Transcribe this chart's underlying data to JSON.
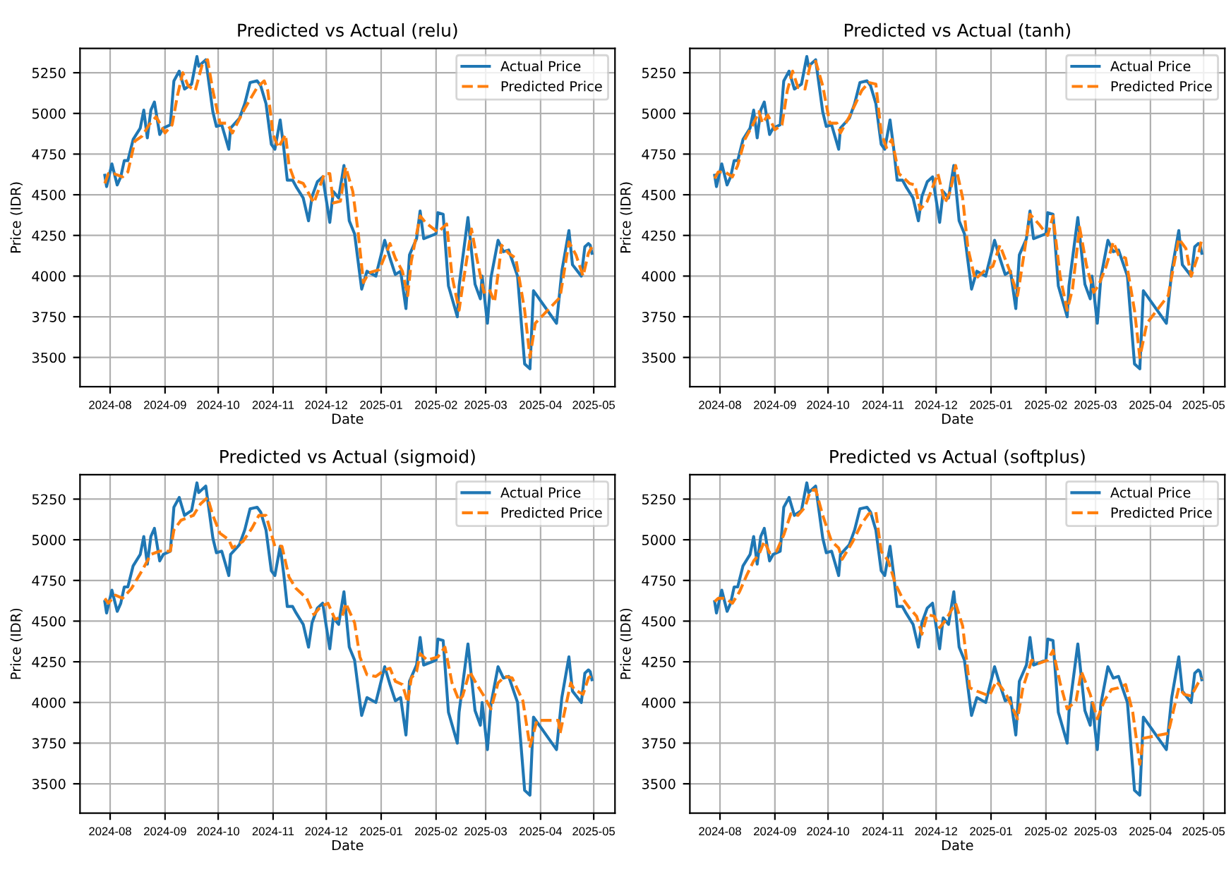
{
  "chart_data": [
    {
      "type": "line",
      "title": "Predicted vs Actual (relu)",
      "xlabel": "Date",
      "ylabel": "Price (IDR)",
      "xlim": [
        "2024-07-15",
        "2025-05-13"
      ],
      "ylim": [
        3320,
        5400
      ],
      "xticks": [
        "2024-08",
        "2024-09",
        "2024-10",
        "2024-11",
        "2024-12",
        "2025-01",
        "2025-02",
        "2025-03",
        "2025-04",
        "2025-05"
      ],
      "yticks": [
        3500,
        3750,
        4000,
        4250,
        4500,
        4750,
        5000,
        5250
      ],
      "grid": true,
      "legend": "top right",
      "series": [
        {
          "name": "Actual Price",
          "color": "#1f77b4",
          "line_style": "solid",
          "x": [
            "2024-07-29",
            "2024-07-30",
            "2024-08-02",
            "2024-08-05",
            "2024-08-07",
            "2024-08-09",
            "2024-08-11",
            "2024-08-14",
            "2024-08-18",
            "2024-08-20",
            "2024-08-22",
            "2024-08-24",
            "2024-08-26",
            "2024-08-29",
            "2024-08-31",
            "2024-09-04",
            "2024-09-06",
            "2024-09-09",
            "2024-09-12",
            "2024-09-16",
            "2024-09-19",
            "2024-09-20",
            "2024-09-24",
            "2024-09-28",
            "2024-09-30",
            "2024-10-03",
            "2024-10-07",
            "2024-10-08",
            "2024-10-13",
            "2024-10-16",
            "2024-10-19",
            "2024-10-23",
            "2024-10-25",
            "2024-10-28",
            "2024-10-31",
            "2024-11-02",
            "2024-11-05",
            "2024-11-07",
            "2024-11-09",
            "2024-11-12",
            "2024-11-14",
            "2024-11-18",
            "2024-11-21",
            "2024-11-23",
            "2024-11-26",
            "2024-11-29",
            "2024-12-03",
            "2024-12-05",
            "2024-12-08",
            "2024-12-11",
            "2024-12-14",
            "2024-12-17",
            "2024-12-19",
            "2024-12-21",
            "2024-12-24",
            "2024-12-29",
            "2025-01-03",
            "2025-01-06",
            "2025-01-09",
            "2025-01-12",
            "2025-01-15",
            "2025-01-17",
            "2025-01-21",
            "2025-01-23",
            "2025-01-25",
            "2025-02-01",
            "2025-02-02",
            "2025-02-05",
            "2025-02-08",
            "2025-02-13",
            "2025-02-14",
            "2025-02-19",
            "2025-02-23",
            "2025-02-26",
            "2025-02-27",
            "2025-03-02",
            "2025-03-04",
            "2025-03-08",
            "2025-03-11",
            "2025-03-14",
            "2025-03-19",
            "2025-03-23",
            "2025-03-26",
            "2025-03-28",
            "2025-04-10",
            "2025-04-13",
            "2025-04-17",
            "2025-04-19",
            "2025-04-24",
            "2025-04-26",
            "2025-04-28",
            "2025-04-29",
            "2025-04-30"
          ],
          "values": [
            4620,
            4550,
            4690,
            4560,
            4610,
            4710,
            4710,
            4840,
            4910,
            5020,
            4850,
            5020,
            5070,
            4870,
            4910,
            4930,
            5200,
            5260,
            5150,
            5180,
            5350,
            5290,
            5330,
            5010,
            4920,
            4930,
            4780,
            4910,
            4970,
            5060,
            5190,
            5200,
            5170,
            5060,
            4810,
            4780,
            4960,
            4790,
            4590,
            4590,
            4550,
            4480,
            4340,
            4490,
            4580,
            4610,
            4330,
            4520,
            4480,
            4680,
            4340,
            4260,
            4090,
            3920,
            4030,
            4000,
            4220,
            4110,
            4010,
            4030,
            3800,
            4130,
            4230,
            4400,
            4230,
            4260,
            4390,
            4380,
            3940,
            3750,
            3940,
            4360,
            3950,
            3860,
            4000,
            3710,
            3990,
            4220,
            4150,
            4160,
            4000,
            3460,
            3430,
            3910,
            3710,
            4030,
            4280,
            4070,
            4000,
            4180,
            4200,
            4190,
            4140
          ]
        },
        {
          "name": "Predicted Price",
          "color": "#ff7f0e",
          "line_style": "dashed",
          "x": [
            "2024-07-29",
            "2024-07-31",
            "2024-08-03",
            "2024-08-08",
            "2024-08-11",
            "2024-08-15",
            "2024-08-19",
            "2024-08-23",
            "2024-08-27",
            "2024-09-01",
            "2024-09-05",
            "2024-09-08",
            "2024-09-11",
            "2024-09-14",
            "2024-09-18",
            "2024-09-22",
            "2024-09-25",
            "2024-09-28",
            "2024-10-02",
            "2024-10-06",
            "2024-10-09",
            "2024-10-16",
            "2024-10-23",
            "2024-10-27",
            "2024-10-29",
            "2024-11-01",
            "2024-11-04",
            "2024-11-08",
            "2024-11-10",
            "2024-11-13",
            "2024-11-18",
            "2024-11-24",
            "2024-11-28",
            "2024-11-30",
            "2024-12-03",
            "2024-12-05",
            "2024-12-09",
            "2024-12-12",
            "2024-12-16",
            "2024-12-19",
            "2024-12-22",
            "2024-12-25",
            "2024-12-31",
            "2025-01-06",
            "2025-01-09",
            "2025-01-13",
            "2025-01-16",
            "2025-01-18",
            "2025-01-23",
            "2025-01-26",
            "2025-02-02",
            "2025-02-07",
            "2025-02-10",
            "2025-02-14",
            "2025-02-16",
            "2025-02-21",
            "2025-02-24",
            "2025-02-28",
            "2025-03-03",
            "2025-03-06",
            "2025-03-10",
            "2025-03-14",
            "2025-03-18",
            "2025-03-23",
            "2025-03-26",
            "2025-03-29",
            "2025-04-12",
            "2025-04-17",
            "2025-04-21",
            "2025-04-25",
            "2025-04-28",
            "2025-04-30"
          ],
          "values": [
            4570,
            4630,
            4630,
            4610,
            4640,
            4830,
            4860,
            4930,
            4980,
            4880,
            4930,
            5110,
            5250,
            5170,
            5140,
            5300,
            5330,
            5140,
            4940,
            4940,
            4880,
            5030,
            5160,
            5200,
            5140,
            4870,
            4790,
            4870,
            4680,
            4590,
            4570,
            4450,
            4570,
            4630,
            4630,
            4450,
            4460,
            4670,
            4520,
            4270,
            3960,
            4020,
            4040,
            4200,
            4110,
            4030,
            3880,
            4090,
            4370,
            4330,
            4270,
            4320,
            4000,
            3790,
            3940,
            4290,
            4110,
            3900,
            3920,
            3840,
            4190,
            4140,
            4110,
            3790,
            3500,
            3710,
            3870,
            4210,
            4130,
            4000,
            4140,
            4180
          ]
        }
      ]
    },
    {
      "type": "line",
      "title": "Predicted vs Actual (tanh)",
      "xlabel": "Date",
      "ylabel": "Price (IDR)",
      "xlim": [
        "2024-07-15",
        "2025-05-13"
      ],
      "ylim": [
        3320,
        5400
      ],
      "xticks": [
        "2024-08",
        "2024-09",
        "2024-10",
        "2024-11",
        "2024-12",
        "2025-01",
        "2025-02",
        "2025-03",
        "2025-04",
        "2025-05"
      ],
      "yticks": [
        3500,
        3750,
        4000,
        4250,
        4500,
        4750,
        5000,
        5250
      ],
      "grid": true,
      "legend": "top right",
      "series": [
        {
          "name": "Actual Price",
          "color": "#1f77b4",
          "line_style": "solid",
          "x": [
            "2024-07-29",
            "2024-07-30",
            "2024-08-02",
            "2024-08-05",
            "2024-08-07",
            "2024-08-09",
            "2024-08-11",
            "2024-08-14",
            "2024-08-18",
            "2024-08-20",
            "2024-08-22",
            "2024-08-24",
            "2024-08-26",
            "2024-08-29",
            "2024-08-31",
            "2024-09-04",
            "2024-09-06",
            "2024-09-09",
            "2024-09-12",
            "2024-09-16",
            "2024-09-19",
            "2024-09-20",
            "2024-09-24",
            "2024-09-28",
            "2024-09-30",
            "2024-10-03",
            "2024-10-07",
            "2024-10-08",
            "2024-10-13",
            "2024-10-16",
            "2024-10-19",
            "2024-10-23",
            "2024-10-25",
            "2024-10-28",
            "2024-10-31",
            "2024-11-02",
            "2024-11-05",
            "2024-11-07",
            "2024-11-09",
            "2024-11-12",
            "2024-11-14",
            "2024-11-18",
            "2024-11-21",
            "2024-11-23",
            "2024-11-26",
            "2024-11-29",
            "2024-12-03",
            "2024-12-05",
            "2024-12-08",
            "2024-12-11",
            "2024-12-14",
            "2024-12-17",
            "2024-12-19",
            "2024-12-21",
            "2024-12-24",
            "2024-12-29",
            "2025-01-03",
            "2025-01-06",
            "2025-01-09",
            "2025-01-12",
            "2025-01-15",
            "2025-01-17",
            "2025-01-21",
            "2025-01-23",
            "2025-01-25",
            "2025-02-01",
            "2025-02-02",
            "2025-02-05",
            "2025-02-08",
            "2025-02-13",
            "2025-02-14",
            "2025-02-19",
            "2025-02-23",
            "2025-02-26",
            "2025-02-27",
            "2025-03-02",
            "2025-03-04",
            "2025-03-08",
            "2025-03-11",
            "2025-03-14",
            "2025-03-19",
            "2025-03-23",
            "2025-03-26",
            "2025-03-28",
            "2025-04-10",
            "2025-04-13",
            "2025-04-17",
            "2025-04-19",
            "2025-04-24",
            "2025-04-26",
            "2025-04-28",
            "2025-04-29",
            "2025-04-30"
          ],
          "values": [
            4620,
            4550,
            4690,
            4560,
            4610,
            4710,
            4710,
            4840,
            4910,
            5020,
            4850,
            5020,
            5070,
            4870,
            4910,
            4930,
            5200,
            5260,
            5150,
            5180,
            5350,
            5290,
            5330,
            5010,
            4920,
            4930,
            4780,
            4910,
            4970,
            5060,
            5190,
            5200,
            5170,
            5060,
            4810,
            4780,
            4960,
            4790,
            4590,
            4590,
            4550,
            4480,
            4340,
            4490,
            4580,
            4610,
            4330,
            4520,
            4480,
            4680,
            4340,
            4260,
            4090,
            3920,
            4030,
            4000,
            4220,
            4110,
            4010,
            4030,
            3800,
            4130,
            4230,
            4400,
            4230,
            4260,
            4390,
            4380,
            3940,
            3750,
            3940,
            4360,
            3950,
            3860,
            4000,
            3710,
            3990,
            4220,
            4150,
            4160,
            4000,
            3460,
            3430,
            3910,
            3710,
            4030,
            4280,
            4070,
            4000,
            4180,
            4200,
            4190,
            4140
          ]
        },
        {
          "name": "Predicted Price",
          "color": "#ff7f0e",
          "line_style": "dashed",
          "x": [
            "2024-07-29",
            "2024-07-31",
            "2024-08-04",
            "2024-08-08",
            "2024-08-11",
            "2024-08-15",
            "2024-08-20",
            "2024-08-23",
            "2024-08-25",
            "2024-08-28",
            "2024-09-01",
            "2024-09-05",
            "2024-09-08",
            "2024-09-11",
            "2024-09-14",
            "2024-09-18",
            "2024-09-21",
            "2024-09-24",
            "2024-09-28",
            "2024-10-02",
            "2024-10-06",
            "2024-10-08",
            "2024-10-13",
            "2024-10-20",
            "2024-10-24",
            "2024-10-28",
            "2024-10-31",
            "2024-11-03",
            "2024-11-06",
            "2024-11-10",
            "2024-11-16",
            "2024-11-19",
            "2024-11-22",
            "2024-11-26",
            "2024-12-02",
            "2024-12-06",
            "2024-12-09",
            "2024-12-12",
            "2024-12-16",
            "2024-12-19",
            "2024-12-23",
            "2024-12-28",
            "2025-01-02",
            "2025-01-06",
            "2025-01-12",
            "2025-01-16",
            "2025-01-19",
            "2025-01-23",
            "2025-01-28",
            "2025-02-02",
            "2025-02-05",
            "2025-02-09",
            "2025-02-13",
            "2025-02-16",
            "2025-02-20",
            "2025-02-24",
            "2025-02-28",
            "2025-03-03",
            "2025-03-07",
            "2025-03-11",
            "2025-03-14",
            "2025-03-18",
            "2025-03-23",
            "2025-03-26",
            "2025-03-30",
            "2025-04-11",
            "2025-04-17",
            "2025-04-21",
            "2025-04-24",
            "2025-04-28",
            "2025-04-30"
          ],
          "values": [
            4600,
            4640,
            4640,
            4610,
            4680,
            4840,
            4940,
            5010,
            4940,
            4990,
            4900,
            4930,
            5140,
            5260,
            5160,
            5150,
            5300,
            5320,
            5170,
            4940,
            4940,
            4880,
            4980,
            5140,
            5190,
            5180,
            4880,
            4790,
            4840,
            4630,
            4570,
            4560,
            4410,
            4460,
            4630,
            4450,
            4520,
            4680,
            4480,
            4170,
            3980,
            4030,
            4060,
            4190,
            4020,
            3880,
            4090,
            4380,
            4320,
            4250,
            4370,
            4000,
            3790,
            3920,
            4300,
            4060,
            3900,
            3950,
            4060,
            4210,
            4130,
            4110,
            3790,
            3500,
            3710,
            3880,
            4230,
            4170,
            4000,
            4130,
            4230
          ]
        }
      ]
    },
    {
      "type": "line",
      "title": "Predicted vs Actual (sigmoid)",
      "xlabel": "Date",
      "ylabel": "Price (IDR)",
      "xlim": [
        "2024-07-15",
        "2025-05-13"
      ],
      "ylim": [
        3320,
        5400
      ],
      "xticks": [
        "2024-08",
        "2024-09",
        "2024-10",
        "2024-11",
        "2024-12",
        "2025-01",
        "2025-02",
        "2025-03",
        "2025-04",
        "2025-05"
      ],
      "yticks": [
        3500,
        3750,
        4000,
        4250,
        4500,
        4750,
        5000,
        5250
      ],
      "grid": true,
      "legend": "top right",
      "series": [
        {
          "name": "Actual Price",
          "color": "#1f77b4",
          "line_style": "solid",
          "x": [
            "2024-07-29",
            "2024-07-30",
            "2024-08-02",
            "2024-08-05",
            "2024-08-07",
            "2024-08-09",
            "2024-08-11",
            "2024-08-14",
            "2024-08-18",
            "2024-08-20",
            "2024-08-22",
            "2024-08-24",
            "2024-08-26",
            "2024-08-29",
            "2024-08-31",
            "2024-09-04",
            "2024-09-06",
            "2024-09-09",
            "2024-09-12",
            "2024-09-16",
            "2024-09-19",
            "2024-09-20",
            "2024-09-24",
            "2024-09-28",
            "2024-09-30",
            "2024-10-03",
            "2024-10-07",
            "2024-10-08",
            "2024-10-13",
            "2024-10-16",
            "2024-10-19",
            "2024-10-23",
            "2024-10-25",
            "2024-10-28",
            "2024-10-31",
            "2024-11-02",
            "2024-11-05",
            "2024-11-07",
            "2024-11-09",
            "2024-11-12",
            "2024-11-14",
            "2024-11-18",
            "2024-11-21",
            "2024-11-23",
            "2024-11-26",
            "2024-11-29",
            "2024-12-03",
            "2024-12-05",
            "2024-12-08",
            "2024-12-11",
            "2024-12-14",
            "2024-12-17",
            "2024-12-19",
            "2024-12-21",
            "2024-12-24",
            "2024-12-29",
            "2025-01-03",
            "2025-01-06",
            "2025-01-09",
            "2025-01-12",
            "2025-01-15",
            "2025-01-17",
            "2025-01-21",
            "2025-01-23",
            "2025-01-25",
            "2025-02-01",
            "2025-02-02",
            "2025-02-05",
            "2025-02-08",
            "2025-02-13",
            "2025-02-14",
            "2025-02-19",
            "2025-02-23",
            "2025-02-26",
            "2025-02-27",
            "2025-03-02",
            "2025-03-04",
            "2025-03-08",
            "2025-03-11",
            "2025-03-14",
            "2025-03-19",
            "2025-03-23",
            "2025-03-26",
            "2025-03-28",
            "2025-04-10",
            "2025-04-13",
            "2025-04-17",
            "2025-04-19",
            "2025-04-24",
            "2025-04-26",
            "2025-04-28",
            "2025-04-29",
            "2025-04-30"
          ],
          "values": [
            4620,
            4550,
            4690,
            4560,
            4610,
            4710,
            4710,
            4840,
            4910,
            5020,
            4850,
            5020,
            5070,
            4870,
            4910,
            4930,
            5200,
            5260,
            5150,
            5180,
            5350,
            5290,
            5330,
            5010,
            4920,
            4930,
            4780,
            4910,
            4970,
            5060,
            5190,
            5200,
            5170,
            5060,
            4810,
            4780,
            4960,
            4790,
            4590,
            4590,
            4550,
            4480,
            4340,
            4490,
            4580,
            4610,
            4330,
            4520,
            4480,
            4680,
            4340,
            4260,
            4090,
            3920,
            4030,
            4000,
            4220,
            4110,
            4010,
            4030,
            3800,
            4130,
            4230,
            4400,
            4230,
            4260,
            4390,
            4380,
            3940,
            3750,
            3940,
            4360,
            3950,
            3860,
            4000,
            3710,
            3990,
            4220,
            4150,
            4160,
            4000,
            3460,
            3430,
            3910,
            3710,
            4030,
            4280,
            4070,
            4000,
            4180,
            4200,
            4190,
            4140
          ]
        },
        {
          "name": "Predicted Price",
          "color": "#ff7f0e",
          "line_style": "dashed",
          "x": [
            "2024-07-29",
            "2024-07-31",
            "2024-08-04",
            "2024-08-08",
            "2024-08-13",
            "2024-08-19",
            "2024-08-24",
            "2024-08-29",
            "2024-09-04",
            "2024-09-06",
            "2024-09-10",
            "2024-09-17",
            "2024-09-21",
            "2024-09-25",
            "2024-09-28",
            "2024-10-02",
            "2024-10-07",
            "2024-10-09",
            "2024-10-15",
            "2024-10-20",
            "2024-10-24",
            "2024-10-28",
            "2024-11-02",
            "2024-11-06",
            "2024-11-10",
            "2024-11-14",
            "2024-11-20",
            "2024-11-24",
            "2024-11-28",
            "2024-12-02",
            "2024-12-06",
            "2024-12-10",
            "2024-12-12",
            "2024-12-17",
            "2024-12-20",
            "2024-12-24",
            "2024-12-29",
            "2025-01-03",
            "2025-01-06",
            "2025-01-09",
            "2025-01-13",
            "2025-01-16",
            "2025-01-18",
            "2025-01-21",
            "2025-01-23",
            "2025-01-27",
            "2025-02-02",
            "2025-02-06",
            "2025-02-10",
            "2025-02-14",
            "2025-02-16",
            "2025-02-20",
            "2025-02-24",
            "2025-02-28",
            "2025-03-04",
            "2025-03-08",
            "2025-03-12",
            "2025-03-16",
            "2025-03-22",
            "2025-03-26",
            "2025-03-30",
            "2025-04-11",
            "2025-04-12",
            "2025-04-18",
            "2025-04-20",
            "2025-04-25",
            "2025-04-28",
            "2025-04-30"
          ],
          "values": [
            4640,
            4610,
            4660,
            4640,
            4700,
            4810,
            4910,
            4930,
            4930,
            5060,
            5120,
            5150,
            5220,
            5260,
            5150,
            5040,
            5000,
            4950,
            4990,
            5070,
            5150,
            5150,
            4960,
            4960,
            4770,
            4700,
            4640,
            4540,
            4590,
            4610,
            4510,
            4530,
            4610,
            4490,
            4280,
            4170,
            4160,
            4200,
            4210,
            4130,
            4110,
            4000,
            4150,
            4190,
            4300,
            4260,
            4280,
            4340,
            4120,
            4010,
            4040,
            4190,
            4110,
            4040,
            3960,
            4120,
            4160,
            4150,
            4010,
            3730,
            3890,
            3890,
            3810,
            4120,
            4080,
            4050,
            4150,
            4170
          ]
        }
      ]
    },
    {
      "type": "line",
      "title": "Predicted vs Actual (softplus)",
      "xlabel": "Date",
      "ylabel": "Price (IDR)",
      "xlim": [
        "2024-07-15",
        "2025-05-13"
      ],
      "ylim": [
        3320,
        5400
      ],
      "xticks": [
        "2024-08",
        "2024-09",
        "2024-10",
        "2024-11",
        "2024-12",
        "2025-01",
        "2025-02",
        "2025-03",
        "2025-04",
        "2025-05"
      ],
      "yticks": [
        3500,
        3750,
        4000,
        4250,
        4500,
        4750,
        5000,
        5250
      ],
      "grid": true,
      "legend": "top right",
      "series": [
        {
          "name": "Actual Price",
          "color": "#1f77b4",
          "line_style": "solid",
          "x": [
            "2024-07-29",
            "2024-07-30",
            "2024-08-02",
            "2024-08-05",
            "2024-08-07",
            "2024-08-09",
            "2024-08-11",
            "2024-08-14",
            "2024-08-18",
            "2024-08-20",
            "2024-08-22",
            "2024-08-24",
            "2024-08-26",
            "2024-08-29",
            "2024-08-31",
            "2024-09-04",
            "2024-09-06",
            "2024-09-09",
            "2024-09-12",
            "2024-09-16",
            "2024-09-19",
            "2024-09-20",
            "2024-09-24",
            "2024-09-28",
            "2024-09-30",
            "2024-10-03",
            "2024-10-07",
            "2024-10-08",
            "2024-10-13",
            "2024-10-16",
            "2024-10-19",
            "2024-10-23",
            "2024-10-25",
            "2024-10-28",
            "2024-10-31",
            "2024-11-02",
            "2024-11-05",
            "2024-11-07",
            "2024-11-09",
            "2024-11-12",
            "2024-11-14",
            "2024-11-18",
            "2024-11-21",
            "2024-11-23",
            "2024-11-26",
            "2024-11-29",
            "2024-12-03",
            "2024-12-05",
            "2024-12-08",
            "2024-12-11",
            "2024-12-14",
            "2024-12-17",
            "2024-12-19",
            "2024-12-21",
            "2024-12-24",
            "2024-12-29",
            "2025-01-03",
            "2025-01-06",
            "2025-01-09",
            "2025-01-12",
            "2025-01-15",
            "2025-01-17",
            "2025-01-21",
            "2025-01-23",
            "2025-01-25",
            "2025-02-01",
            "2025-02-02",
            "2025-02-05",
            "2025-02-08",
            "2025-02-13",
            "2025-02-14",
            "2025-02-19",
            "2025-02-23",
            "2025-02-26",
            "2025-02-27",
            "2025-03-02",
            "2025-03-04",
            "2025-03-08",
            "2025-03-11",
            "2025-03-14",
            "2025-03-19",
            "2025-03-23",
            "2025-03-26",
            "2025-03-28",
            "2025-04-10",
            "2025-04-13",
            "2025-04-17",
            "2025-04-19",
            "2025-04-24",
            "2025-04-26",
            "2025-04-28",
            "2025-04-29",
            "2025-04-30"
          ],
          "values": [
            4620,
            4550,
            4690,
            4560,
            4610,
            4710,
            4710,
            4840,
            4910,
            5020,
            4850,
            5020,
            5070,
            4870,
            4910,
            4930,
            5200,
            5260,
            5150,
            5180,
            5350,
            5290,
            5330,
            5010,
            4920,
            4930,
            4780,
            4910,
            4970,
            5060,
            5190,
            5200,
            5170,
            5060,
            4810,
            4780,
            4960,
            4790,
            4590,
            4590,
            4550,
            4480,
            4340,
            4490,
            4580,
            4610,
            4330,
            4520,
            4480,
            4680,
            4340,
            4260,
            4090,
            3920,
            4030,
            4000,
            4220,
            4110,
            4010,
            4030,
            3800,
            4130,
            4230,
            4400,
            4230,
            4260,
            4390,
            4380,
            3940,
            3750,
            3940,
            4360,
            3950,
            3860,
            4000,
            3710,
            3990,
            4220,
            4150,
            4160,
            4000,
            3460,
            3430,
            3910,
            3710,
            4030,
            4280,
            4070,
            4000,
            4180,
            4200,
            4190,
            4140
          ]
        },
        {
          "name": "Predicted Price",
          "color": "#ff7f0e",
          "line_style": "dashed",
          "x": [
            "2024-07-29",
            "2024-07-31",
            "2024-08-04",
            "2024-08-08",
            "2024-08-12",
            "2024-08-16",
            "2024-08-20",
            "2024-08-23",
            "2024-08-26",
            "2024-08-29",
            "2024-09-02",
            "2024-09-06",
            "2024-09-10",
            "2024-09-14",
            "2024-09-18",
            "2024-09-21",
            "2024-09-24",
            "2024-09-28",
            "2024-10-03",
            "2024-10-07",
            "2024-10-09",
            "2024-10-15",
            "2024-10-20",
            "2024-10-24",
            "2024-10-28",
            "2024-10-31",
            "2024-11-04",
            "2024-11-08",
            "2024-11-12",
            "2024-11-16",
            "2024-11-20",
            "2024-11-23",
            "2024-11-26",
            "2024-11-30",
            "2024-12-03",
            "2024-12-06",
            "2024-12-12",
            "2024-12-16",
            "2024-12-20",
            "2024-12-24",
            "2024-12-31",
            "2025-01-04",
            "2025-01-07",
            "2025-01-10",
            "2025-01-16",
            "2025-01-19",
            "2025-01-24",
            "2025-01-28",
            "2025-02-02",
            "2025-02-05",
            "2025-02-09",
            "2025-02-13",
            "2025-02-18",
            "2025-02-21",
            "2025-02-26",
            "2025-03-02",
            "2025-03-06",
            "2025-03-10",
            "2025-03-14",
            "2025-03-18",
            "2025-03-22",
            "2025-03-26",
            "2025-03-28",
            "2025-04-11",
            "2025-04-17",
            "2025-04-20",
            "2025-04-24",
            "2025-04-28",
            "2025-04-30"
          ],
          "values": [
            4620,
            4640,
            4640,
            4610,
            4680,
            4780,
            4870,
            4910,
            4990,
            4920,
            4930,
            5030,
            5160,
            5150,
            5200,
            5300,
            5310,
            5150,
            4990,
            4950,
            4880,
            4990,
            5100,
            5160,
            5170,
            4930,
            4870,
            4730,
            4640,
            4580,
            4530,
            4420,
            4540,
            4530,
            4460,
            4500,
            4610,
            4470,
            4090,
            4070,
            4040,
            4130,
            4090,
            4040,
            3900,
            4090,
            4260,
            4240,
            4260,
            4320,
            4120,
            3960,
            4010,
            4190,
            4050,
            3900,
            4010,
            4080,
            4090,
            4110,
            3940,
            3620,
            3780,
            3810,
            4090,
            4050,
            4040,
            4120,
            4150
          ]
        }
      ]
    }
  ]
}
